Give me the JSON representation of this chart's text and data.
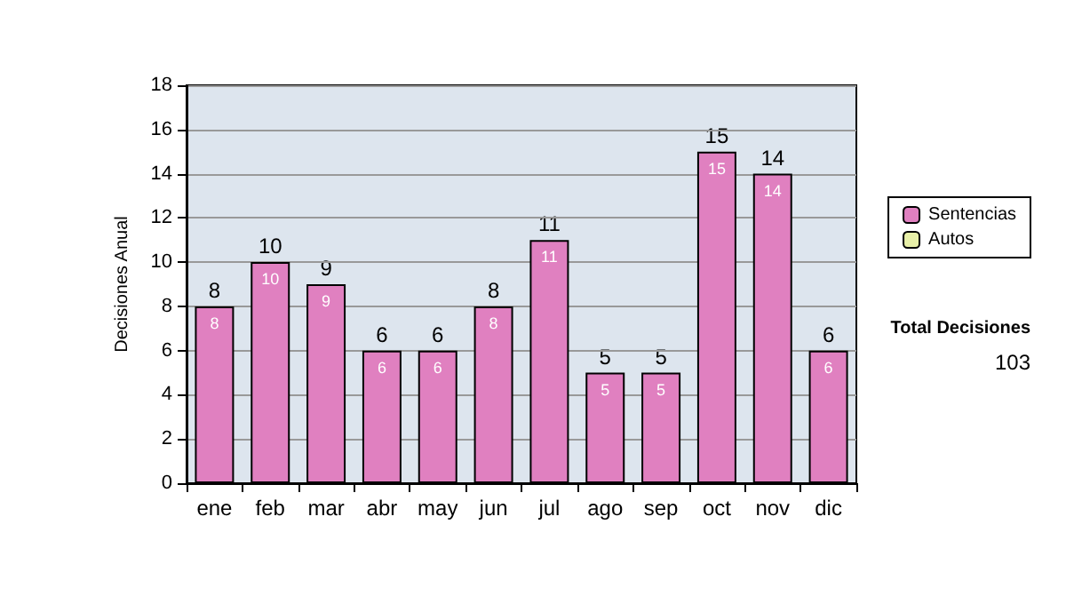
{
  "chart_data": {
    "type": "bar",
    "ylabel": "Decisiones Anual",
    "categories": [
      "ene",
      "feb",
      "mar",
      "abr",
      "may",
      "jun",
      "jul",
      "ago",
      "sep",
      "oct",
      "nov",
      "dic"
    ],
    "series": [
      {
        "name": "Sentencias",
        "color": "#e080c0",
        "values": [
          8,
          10,
          9,
          6,
          6,
          8,
          11,
          5,
          5,
          15,
          14,
          6
        ],
        "value_labels": [
          "8",
          "10",
          "9",
          "6",
          "6",
          "8",
          "11",
          "5",
          "5",
          "15",
          "14",
          "6"
        ]
      },
      {
        "name": "Autos",
        "color": "#e8f0a8",
        "values": [
          null,
          null,
          null,
          null,
          null,
          null,
          null,
          null,
          null,
          null,
          null,
          null
        ]
      }
    ],
    "stacked": true,
    "totals": [
      "8",
      "10",
      "9",
      "6",
      "6",
      "8",
      "11",
      "5",
      "5",
      "15",
      "14",
      "6"
    ],
    "ylim": [
      0,
      18
    ],
    "yticks": [
      0,
      2,
      4,
      6,
      8,
      10,
      12,
      14,
      16,
      18
    ],
    "grid": "y",
    "legend": "right",
    "annotations": [
      "Total Decisiones",
      "103"
    ]
  }
}
